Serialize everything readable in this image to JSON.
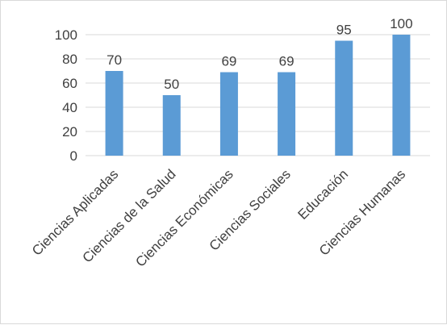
{
  "chart_data": {
    "type": "bar",
    "categories": [
      "Ciencias Aplicadas",
      "Ciencias de la Salud",
      "Ciencias Económicas",
      "Ciencias Sociales",
      "Educación",
      "Ciencias Humanas"
    ],
    "values": [
      70,
      50,
      69,
      69,
      95,
      100
    ],
    "data_labels": [
      "70",
      "50",
      "69",
      "69",
      "95",
      "100"
    ],
    "ylim": [
      0,
      100
    ],
    "yticks": [
      "0",
      "20",
      "40",
      "60",
      "80",
      "100"
    ],
    "grid": true,
    "legend": "none",
    "colors": {
      "bar": "#5b9bd5",
      "grid": "#d9d9d9",
      "text": "#404040"
    }
  }
}
